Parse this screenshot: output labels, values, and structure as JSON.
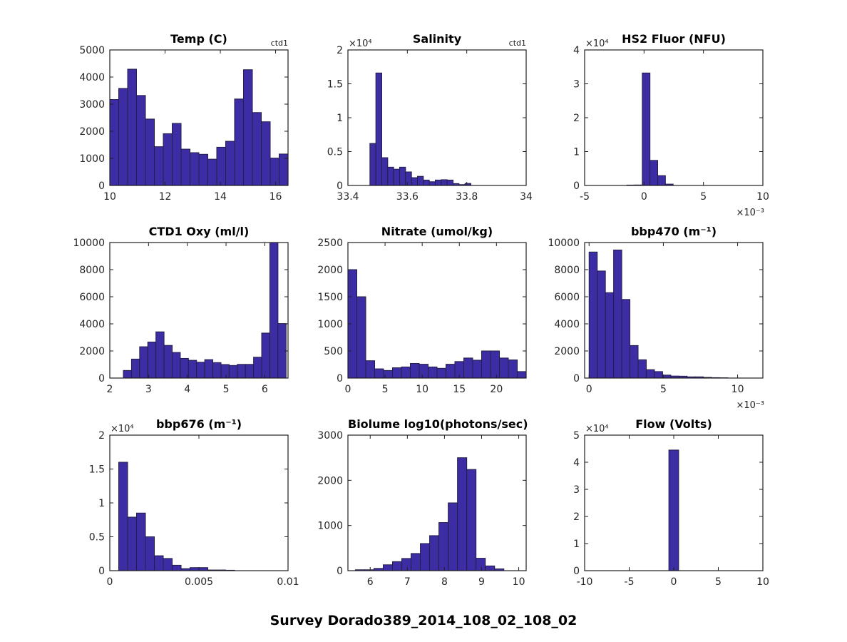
{
  "figure": {
    "suptitle": "Survey Dorado389_2014_108_02_108_02"
  },
  "colors": {
    "bar_fill": "#3D2DA5",
    "bar_edge": "#231E45",
    "axis": "#1f1f1f",
    "text": "#262626"
  },
  "chart_data": [
    {
      "type": "bar",
      "title": "Temp (C)",
      "corner_label": "ctd1",
      "xlim": [
        10,
        16.45
      ],
      "ylim": [
        0,
        5000
      ],
      "bin_start": 10.0,
      "bin_width": 0.3225,
      "values": [
        3170,
        3580,
        4290,
        3320,
        2450,
        1430,
        1910,
        2290,
        1340,
        1210,
        1150,
        970,
        1410,
        1630,
        3190,
        4270,
        2690,
        2350,
        1010,
        1160
      ],
      "x_ticks": [
        10,
        12,
        14,
        16
      ],
      "x_tick_labels": [
        "10",
        "12",
        "14",
        "16"
      ],
      "y_ticks": [
        0,
        1000,
        2000,
        3000,
        4000,
        5000
      ],
      "y_tick_labels": [
        "0",
        "1000",
        "2000",
        "3000",
        "4000",
        "5000"
      ]
    },
    {
      "type": "bar",
      "title": "Salinity",
      "corner_label": "ctd1",
      "xlim": [
        33.4,
        34.0
      ],
      "ylim": [
        0,
        20000
      ],
      "bin_start": 33.474,
      "bin_width": 0.02,
      "values": [
        6200,
        16600,
        4100,
        2700,
        2400,
        2700,
        2000,
        1150,
        1350,
        800,
        550,
        800,
        850,
        800,
        280,
        130,
        300
      ],
      "x_ticks": [
        33.4,
        33.6,
        33.8,
        34
      ],
      "x_tick_labels": [
        "33.4",
        "33.6",
        "33.8",
        "34"
      ],
      "y_ticks": [
        0,
        5000,
        10000,
        15000,
        20000
      ],
      "y_tick_labels": [
        "0",
        "0.5",
        "1",
        "1.5",
        "2"
      ],
      "y_scale_label": "×10⁴"
    },
    {
      "type": "bar",
      "title": "HS2 Fluor (NFU)",
      "xlim": [
        -0.005,
        0.01
      ],
      "ylim": [
        0,
        40000
      ],
      "bin_start": -0.00145,
      "bin_width": 0.00065,
      "values": [
        120,
        150,
        33200,
        7400,
        2900,
        400
      ],
      "x_ticks": [
        -0.005,
        0,
        0.005,
        0.01
      ],
      "x_tick_labels": [
        "-5",
        "0",
        "5",
        "10"
      ],
      "x_scale_label": "×10⁻³",
      "y_ticks": [
        0,
        10000,
        20000,
        30000,
        40000
      ],
      "y_tick_labels": [
        "0",
        "1",
        "2",
        "3",
        "4"
      ],
      "y_scale_label": "×10⁴"
    },
    {
      "type": "bar",
      "title": "CTD1 Oxy (ml/l)",
      "xlim": [
        2,
        6.6
      ],
      "ylim": [
        0,
        10000
      ],
      "bin_start": 2.35,
      "bin_width": 0.21,
      "values": [
        560,
        1400,
        2310,
        2660,
        3410,
        2410,
        1890,
        1450,
        1310,
        1170,
        1360,
        1140,
        1000,
        930,
        1010,
        1010,
        1540,
        3320,
        10000,
        4020
      ],
      "x_ticks": [
        2,
        3,
        4,
        5,
        6
      ],
      "x_tick_labels": [
        "2",
        "3",
        "4",
        "5",
        "6"
      ],
      "y_ticks": [
        0,
        2000,
        4000,
        6000,
        8000,
        10000
      ],
      "y_tick_labels": [
        "0",
        "2000",
        "4000",
        "6000",
        "8000",
        "10000"
      ]
    },
    {
      "type": "bar",
      "title": "Nitrate (umol/kg)",
      "xlim": [
        0,
        24
      ],
      "ylim": [
        0,
        2500
      ],
      "bin_start": 0,
      "bin_width": 1.2,
      "values": [
        2000,
        1500,
        320,
        170,
        140,
        190,
        205,
        270,
        255,
        205,
        180,
        255,
        305,
        370,
        330,
        500,
        500,
        370,
        335,
        120
      ],
      "x_ticks": [
        0,
        5,
        10,
        15,
        20
      ],
      "x_tick_labels": [
        "0",
        "5",
        "10",
        "15",
        "20"
      ],
      "y_ticks": [
        0,
        500,
        1000,
        1500,
        2000,
        2500
      ],
      "y_tick_labels": [
        "0",
        "500",
        "1000",
        "1500",
        "2000",
        "2500"
      ]
    },
    {
      "type": "bar",
      "title": "bbp470 (m⁻¹)",
      "xlim": [
        -0.0003,
        0.0117
      ],
      "ylim": [
        0,
        10000
      ],
      "bin_start": 0,
      "bin_width": 0.00055,
      "values": [
        9300,
        7900,
        6300,
        9450,
        5800,
        2400,
        1350,
        620,
        480,
        220,
        150,
        140,
        90,
        90,
        50,
        30,
        20
      ],
      "x_ticks": [
        0,
        0.005,
        0.01
      ],
      "x_tick_labels": [
        "0",
        "5",
        "10"
      ],
      "x_scale_label": "×10⁻³",
      "y_ticks": [
        0,
        2000,
        4000,
        6000,
        8000,
        10000
      ],
      "y_tick_labels": [
        "0",
        "2000",
        "4000",
        "6000",
        "8000",
        "10000"
      ]
    },
    {
      "type": "bar",
      "title": "bbp676 (m⁻¹)",
      "xlim": [
        0,
        0.01
      ],
      "ylim": [
        0,
        20000
      ],
      "bin_start": 0.0005,
      "bin_width": 0.0005,
      "values": [
        16000,
        7900,
        8500,
        5000,
        2200,
        1800,
        800,
        300,
        450,
        450,
        100,
        100,
        60
      ],
      "x_ticks": [
        0,
        0.005,
        0.01
      ],
      "x_tick_labels": [
        "0",
        "0.005",
        "0.01"
      ],
      "y_ticks": [
        0,
        5000,
        10000,
        15000,
        20000
      ],
      "y_tick_labels": [
        "0",
        "0.5",
        "1",
        "1.5",
        "2"
      ],
      "y_scale_label": "×10⁴"
    },
    {
      "type": "bar",
      "title": "Biolume log10(photons/sec)",
      "xlim": [
        5.4,
        10.2
      ],
      "ylim": [
        0,
        3000
      ],
      "bin_start": 5.6,
      "bin_width": 0.25,
      "values": [
        20,
        20,
        50,
        130,
        200,
        270,
        380,
        600,
        775,
        1065,
        1500,
        2500,
        2240,
        275,
        105,
        40
      ],
      "x_ticks": [
        6,
        7,
        8,
        9,
        10
      ],
      "x_tick_labels": [
        "6",
        "7",
        "8",
        "9",
        "10"
      ],
      "y_ticks": [
        0,
        1000,
        2000,
        3000
      ],
      "y_tick_labels": [
        "0",
        "1000",
        "2000",
        "3000"
      ]
    },
    {
      "type": "bar",
      "title": "Flow (Volts)",
      "xlim": [
        -10,
        10
      ],
      "ylim": [
        0,
        50000
      ],
      "bin_start": -0.55,
      "bin_width": 1.1,
      "values": [
        44500
      ],
      "x_ticks": [
        -10,
        -5,
        0,
        5,
        10
      ],
      "x_tick_labels": [
        "-10",
        "-5",
        "0",
        "5",
        "10"
      ],
      "y_ticks": [
        0,
        10000,
        20000,
        30000,
        40000,
        50000
      ],
      "y_tick_labels": [
        "0",
        "1",
        "2",
        "3",
        "4",
        "5"
      ],
      "y_scale_label": "×10⁴"
    }
  ]
}
